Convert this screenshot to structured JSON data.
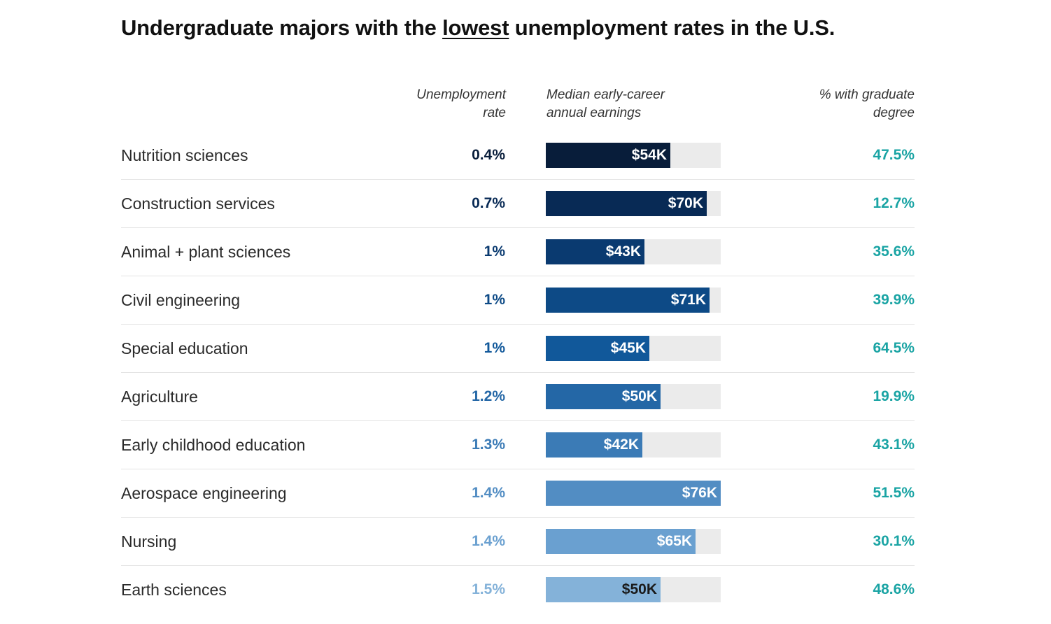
{
  "title": {
    "before": "Undergraduate majors with the ",
    "emphasis": "lowest",
    "after": " unemployment rates in the U.S."
  },
  "headers": {
    "unemployment": [
      "Unemployment",
      "rate"
    ],
    "earnings": [
      "Median early-career",
      "annual earnings"
    ],
    "graduate": [
      "% with graduate",
      "degree"
    ]
  },
  "colors": {
    "grad_text": "#1aa4a4",
    "bar_track": "#ebebeb",
    "row_palette": [
      "#081d3a",
      "#082a55",
      "#0a3a70",
      "#0d4a86",
      "#11589a",
      "#2467a6",
      "#3b7bb6",
      "#528dc3",
      "#6aa0d0",
      "#84b2d9"
    ],
    "earnings_label_light": "#ffffff",
    "earnings_label_dark": "#1a1a1a"
  },
  "chart_data": {
    "type": "table",
    "title": "Undergraduate majors with the lowest unemployment rates in the U.S.",
    "columns": [
      "Unemployment rate",
      "Median early-career annual earnings",
      "% with graduate degree"
    ],
    "earnings_axis_max": 76,
    "rows": [
      {
        "major": "Nutrition sciences",
        "unemployment": "0.4%",
        "earnings": 54,
        "earnings_label": "$54K",
        "graduate": "47.5%"
      },
      {
        "major": "Construction services",
        "unemployment": "0.7%",
        "earnings": 70,
        "earnings_label": "$70K",
        "graduate": "12.7%"
      },
      {
        "major": "Animal + plant sciences",
        "unemployment": "1%",
        "earnings": 43,
        "earnings_label": "$43K",
        "graduate": "35.6%"
      },
      {
        "major": "Civil engineering",
        "unemployment": "1%",
        "earnings": 71,
        "earnings_label": "$71K",
        "graduate": "39.9%"
      },
      {
        "major": "Special education",
        "unemployment": "1%",
        "earnings": 45,
        "earnings_label": "$45K",
        "graduate": "64.5%"
      },
      {
        "major": "Agriculture",
        "unemployment": "1.2%",
        "earnings": 50,
        "earnings_label": "$50K",
        "graduate": "19.9%"
      },
      {
        "major": "Early childhood education",
        "unemployment": "1.3%",
        "earnings": 42,
        "earnings_label": "$42K",
        "graduate": "43.1%"
      },
      {
        "major": "Aerospace engineering",
        "unemployment": "1.4%",
        "earnings": 76,
        "earnings_label": "$76K",
        "graduate": "51.5%"
      },
      {
        "major": "Nursing",
        "unemployment": "1.4%",
        "earnings": 65,
        "earnings_label": "$65K",
        "graduate": "30.1%"
      },
      {
        "major": "Earth sciences",
        "unemployment": "1.5%",
        "earnings": 50,
        "earnings_label": "$50K",
        "graduate": "48.6%"
      }
    ]
  }
}
